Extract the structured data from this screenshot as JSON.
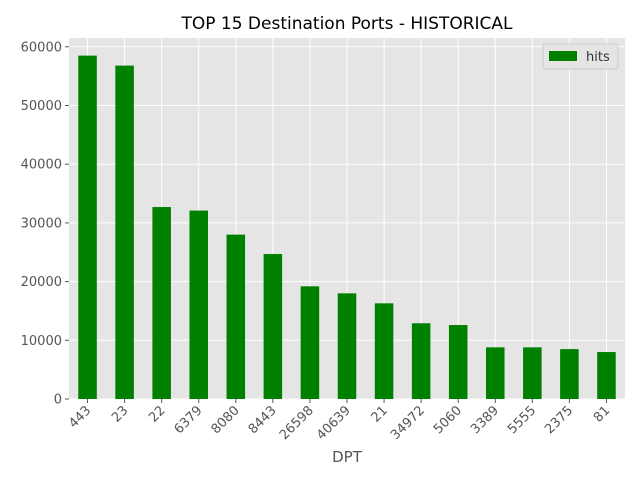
{
  "chart_data": {
    "type": "bar",
    "title": "TOP 15 Destination Ports - HISTORICAL",
    "xlabel": "DPT",
    "ylabel": "",
    "categories": [
      "443",
      "23",
      "22",
      "6379",
      "8080",
      "8443",
      "26598",
      "40639",
      "21",
      "34972",
      "5060",
      "3389",
      "5555",
      "2375",
      "81"
    ],
    "series": [
      {
        "name": "hits",
        "values": [
          58500,
          56800,
          32700,
          32100,
          28000,
          24700,
          19200,
          18000,
          16300,
          12900,
          12600,
          8800,
          8800,
          8500,
          8000
        ]
      }
    ],
    "ylim": [
      0,
      61500
    ],
    "yticks": [
      0,
      10000,
      20000,
      30000,
      40000,
      50000,
      60000
    ],
    "grid": true,
    "legend_position": "top-right",
    "colors": {
      "bar": "#008000",
      "plot_background": "#e5e5e5",
      "grid": "#ffffff"
    }
  }
}
